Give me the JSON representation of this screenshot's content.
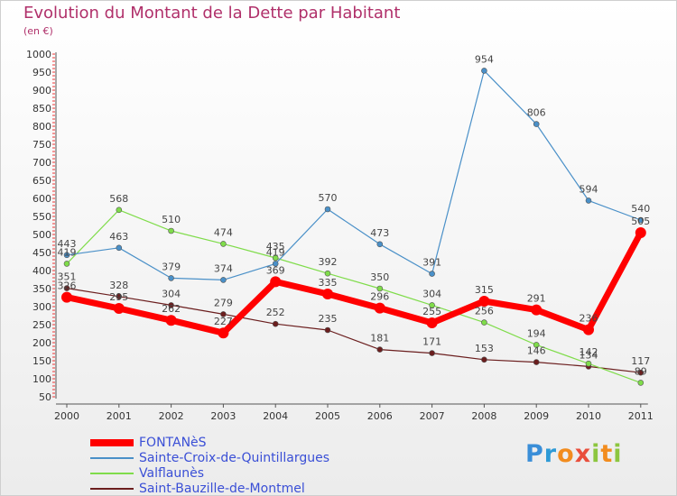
{
  "chart_data": {
    "type": "line",
    "title": "Evolution du Montant de la Dette par Habitant",
    "subtitle": "(en €)",
    "categories": [
      "2000",
      "2001",
      "2002",
      "2003",
      "2004",
      "2005",
      "2006",
      "2007",
      "2008",
      "2009",
      "2010",
      "2011"
    ],
    "ylim": [
      50,
      1000
    ],
    "yticks": [
      50,
      100,
      150,
      200,
      250,
      300,
      350,
      400,
      450,
      500,
      550,
      600,
      650,
      700,
      750,
      800,
      850,
      900,
      950,
      1000
    ],
    "grid": false,
    "legend_position": "bottom-left",
    "series": [
      {
        "name": "FONTANèS",
        "color": "#ff0000",
        "values": [
          326,
          295,
          262,
          227,
          369,
          335,
          296,
          255,
          315,
          291,
          236,
          505
        ],
        "labels": [
          "326",
          "295",
          "262",
          "227",
          "369",
          "335",
          "296",
          "255",
          "315",
          "291",
          "236",
          "505"
        ]
      },
      {
        "name": "Sainte-Croix-de-Quintillargues",
        "color": "#4a90c8",
        "values": [
          443,
          463,
          379,
          374,
          419,
          570,
          473,
          391,
          954,
          806,
          594,
          540
        ],
        "labels": [
          "443",
          "463",
          "379",
          "374",
          "419",
          "570",
          "473",
          "391",
          "954",
          "806",
          "594",
          "540"
        ]
      },
      {
        "name": "Valflaunès",
        "color": "#7fdc4a",
        "values": [
          419,
          568,
          510,
          474,
          435,
          392,
          350,
          304,
          256,
          194,
          142,
          89
        ],
        "labels": [
          "419",
          "568",
          "510",
          "474",
          "435",
          "392",
          "350",
          "304",
          "256",
          "194",
          "142",
          "89"
        ]
      },
      {
        "name": "Saint-Bauzille-de-Montmel",
        "color": "#6b1e1e",
        "values": [
          351,
          328,
          304,
          279,
          252,
          235,
          181,
          171,
          153,
          146,
          134,
          117
        ],
        "labels": [
          "351",
          "328",
          "304",
          "279",
          "252",
          "235",
          "181",
          "171",
          "153",
          "146",
          "134",
          "117"
        ]
      }
    ]
  },
  "logo": {
    "letters": [
      {
        "char": "P",
        "color": "#3a8ed8"
      },
      {
        "char": "r",
        "color": "#2e9ad6"
      },
      {
        "char": "o",
        "color": "#f28c1e"
      },
      {
        "char": "x",
        "color": "#e94e3c"
      },
      {
        "char": "i",
        "color": "#8cc63f"
      },
      {
        "char": "t",
        "color": "#f28c1e"
      },
      {
        "char": "i",
        "color": "#8cc63f"
      }
    ]
  }
}
